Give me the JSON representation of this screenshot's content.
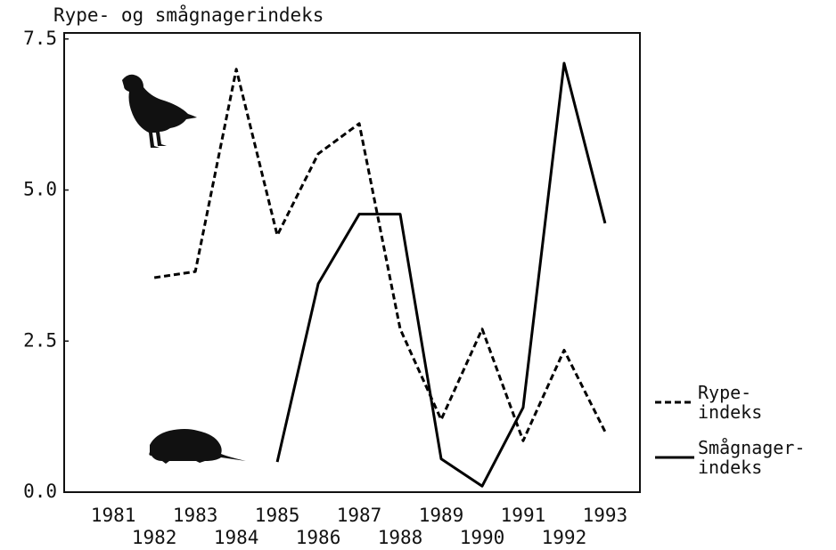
{
  "chart_data": {
    "type": "line",
    "title": "Rype- og smågnagerindeks",
    "x": [
      1981,
      1982,
      1983,
      1984,
      1985,
      1986,
      1987,
      1988,
      1989,
      1990,
      1991,
      1992,
      1993
    ],
    "xlim": [
      1979.8,
      1993.85
    ],
    "xticks": [
      1981,
      1982,
      1983,
      1984,
      1985,
      1986,
      1987,
      1988,
      1989,
      1990,
      1991,
      1992,
      1993
    ],
    "ylim": [
      0,
      7.6
    ],
    "yticks": [
      {
        "value": 0,
        "label": "0.0"
      },
      {
        "value": 2.5,
        "label": "2.5"
      },
      {
        "value": 5,
        "label": "5.0"
      },
      {
        "value": 7.5,
        "label": "7.5"
      }
    ],
    "series": [
      {
        "name": "Rype-\nindeks",
        "color": "#000000",
        "line_style": "dashed",
        "values": [
          null,
          3.55,
          3.65,
          7.0,
          4.25,
          5.6,
          6.1,
          2.7,
          1.2,
          2.7,
          0.85,
          2.35,
          1.0
        ]
      },
      {
        "name": "Smågnager-\nindeks",
        "color": "#000000",
        "line_style": "solid",
        "values": [
          null,
          null,
          null,
          null,
          0.5,
          3.45,
          4.6,
          4.6,
          0.55,
          0.1,
          1.4,
          7.1,
          4.45
        ]
      }
    ]
  }
}
